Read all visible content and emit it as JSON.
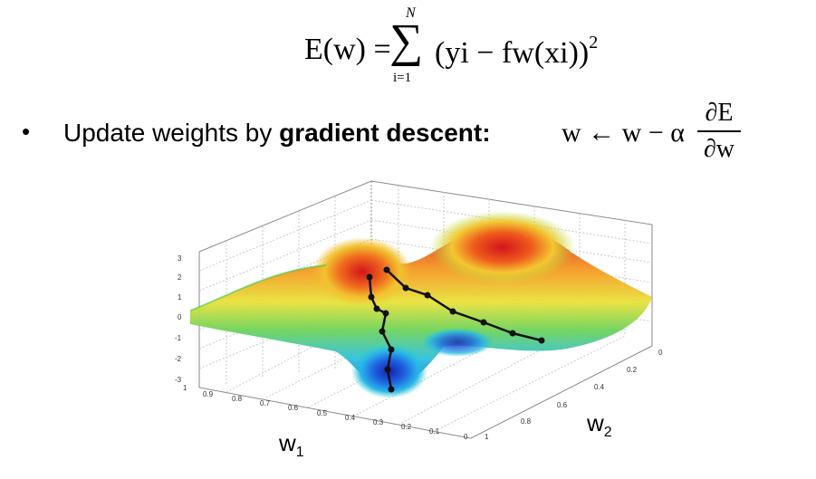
{
  "equation": {
    "lhs": "E(w) =",
    "sum_symbol": "∑",
    "sum_upper": "N",
    "sum_lower": "i=1",
    "rhs": "(yi − fw(xi))",
    "exponent": "2"
  },
  "bullet": {
    "symbol": "•",
    "text_prefix": "Update weights by",
    "text_bold": "gradient descent:"
  },
  "update_rule": {
    "lhs": "w ← w − α",
    "numerator": "∂E",
    "denominator": "∂w"
  },
  "plot": {
    "z_ticks": [
      "3",
      "2",
      "1",
      "0",
      "-1",
      "-2",
      "-3"
    ],
    "w1_ticks": [
      "1",
      "0.9",
      "0.8",
      "0.7",
      "0.6",
      "0.5",
      "0.4",
      "0.3",
      "0.2",
      "0.1",
      "0"
    ],
    "w2_ticks": [
      "0",
      "0.2",
      "0.4",
      "0.6",
      "0.8",
      "1"
    ],
    "w1_label": "w",
    "w1_sub": "1",
    "w2_label": "w",
    "w2_sub": "2"
  }
}
